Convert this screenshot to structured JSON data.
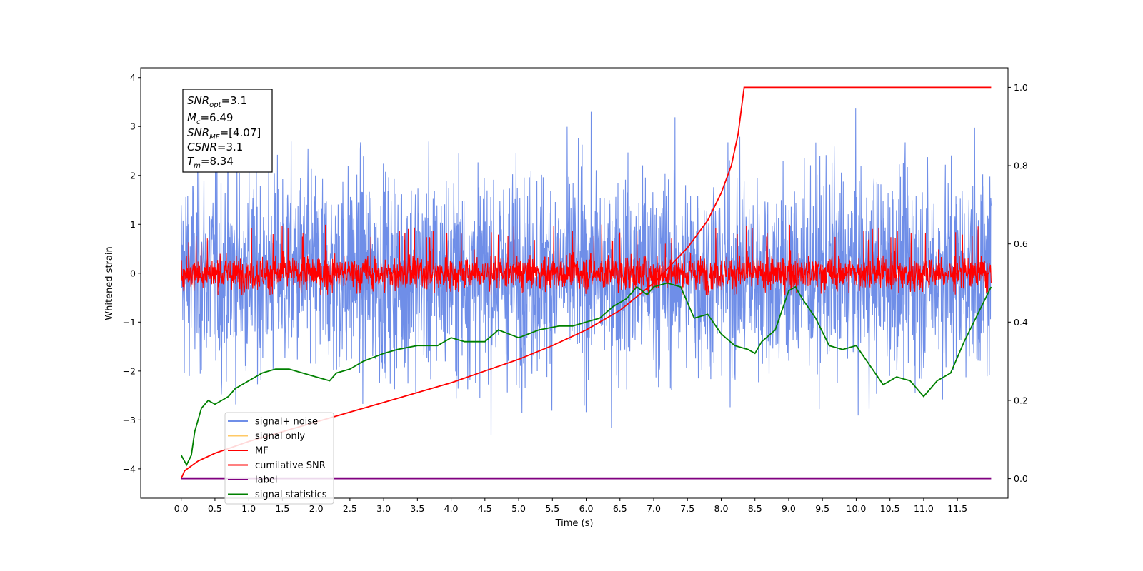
{
  "chart_data": {
    "type": "line",
    "xlabel": "Time (s)",
    "ylabel": "Whitened strain",
    "xlim": [
      -0.6,
      12.25
    ],
    "ylim": [
      -4.6,
      4.2
    ],
    "y2lim": [
      -0.05,
      1.05
    ],
    "x_ticks": [
      "0.0",
      "0.5",
      "1.0",
      "1.5",
      "2.0",
      "2.5",
      "3.0",
      "3.5",
      "4.0",
      "4.5",
      "5.0",
      "5.5",
      "6.0",
      "6.5",
      "7.0",
      "7.5",
      "8.0",
      "8.5",
      "9.0",
      "9.5",
      "10.0",
      "10.5",
      "11.0",
      "11.5"
    ],
    "y_ticks": [
      "4",
      "3",
      "2",
      "1",
      "0",
      "−1",
      "−2",
      "−3",
      "−4"
    ],
    "y2_ticks": [
      "1.0",
      "0.8",
      "0.6",
      "0.4",
      "0.2",
      "0.0"
    ],
    "annotation": {
      "snr_opt_label": "SNR",
      "snr_opt_sub": "opt",
      "snr_opt_value": "=3.1",
      "mc_label": "M",
      "mc_sub": "c",
      "mc_value": "=6.49",
      "snr_mf_label": "SNR",
      "snr_mf_sub": "MF",
      "snr_mf_value": "=[4.07]",
      "csnr_label": "CSNR",
      "csnr_value": "=3.1",
      "tm_label": "T",
      "tm_sub": "m",
      "tm_value": "=8.34"
    },
    "legend": {
      "placement": "lower-left",
      "entries": [
        {
          "name": "signal+ noise",
          "color": "#6f8ee8"
        },
        {
          "name": "signal only",
          "color": "#ffc966"
        },
        {
          "name": "MF",
          "color": "#ff0000"
        },
        {
          "name": "cumilative SNR",
          "color": "#ff0000"
        },
        {
          "name": "label",
          "color": "#800080"
        },
        {
          "name": "signal statistics",
          "color": "#008000"
        }
      ]
    },
    "series": [
      {
        "name": "signal+ noise",
        "axis": "left",
        "color": "#6f8ee8",
        "style": "noise",
        "x_range": [
          0.0,
          12.0
        ],
        "std": 1.05,
        "min": -4.15,
        "max": 3.8
      },
      {
        "name": "MF",
        "axis": "left",
        "color": "#ff0000",
        "style": "noise",
        "x_range": [
          0.0,
          12.0
        ],
        "std": 0.18,
        "min": -0.45,
        "max": 1.0
      },
      {
        "name": "cumilative SNR",
        "axis": "right",
        "color": "#ff0000",
        "x": [
          0.0,
          0.05,
          0.25,
          0.5,
          1.0,
          1.5,
          2.0,
          2.5,
          3.0,
          3.5,
          4.0,
          4.5,
          5.0,
          5.5,
          6.0,
          6.5,
          7.0,
          7.5,
          7.8,
          8.0,
          8.15,
          8.25,
          8.34,
          8.5,
          9.0,
          10.0,
          11.0,
          12.0
        ],
        "values": [
          0.0,
          0.02,
          0.045,
          0.065,
          0.095,
          0.12,
          0.145,
          0.17,
          0.195,
          0.22,
          0.245,
          0.275,
          0.305,
          0.34,
          0.38,
          0.43,
          0.5,
          0.59,
          0.66,
          0.73,
          0.8,
          0.88,
          1.0,
          1.0,
          1.0,
          1.0,
          1.0,
          1.0
        ]
      },
      {
        "name": "label",
        "axis": "right",
        "color": "#800080",
        "x": [
          0.0,
          12.0
        ],
        "values": [
          0.0,
          0.0
        ]
      },
      {
        "name": "signal statistics",
        "axis": "right",
        "color": "#008000",
        "x": [
          0.0,
          0.08,
          0.15,
          0.2,
          0.3,
          0.4,
          0.5,
          0.6,
          0.7,
          0.8,
          0.9,
          1.0,
          1.2,
          1.4,
          1.6,
          1.8,
          2.0,
          2.2,
          2.3,
          2.5,
          2.7,
          3.0,
          3.2,
          3.5,
          3.8,
          4.0,
          4.2,
          4.5,
          4.7,
          5.0,
          5.3,
          5.6,
          5.8,
          6.0,
          6.2,
          6.4,
          6.6,
          6.75,
          6.9,
          7.0,
          7.2,
          7.4,
          7.6,
          7.8,
          8.0,
          8.2,
          8.4,
          8.5,
          8.6,
          8.8,
          9.0,
          9.1,
          9.2,
          9.4,
          9.6,
          9.8,
          10.0,
          10.2,
          10.4,
          10.6,
          10.8,
          11.0,
          11.2,
          11.4,
          11.6,
          11.8,
          12.0
        ],
        "values": [
          0.06,
          0.035,
          0.06,
          0.12,
          0.18,
          0.2,
          0.19,
          0.2,
          0.21,
          0.23,
          0.24,
          0.25,
          0.27,
          0.28,
          0.28,
          0.27,
          0.26,
          0.25,
          0.27,
          0.28,
          0.3,
          0.32,
          0.33,
          0.34,
          0.34,
          0.36,
          0.35,
          0.35,
          0.38,
          0.36,
          0.38,
          0.39,
          0.39,
          0.4,
          0.41,
          0.44,
          0.46,
          0.49,
          0.47,
          0.49,
          0.5,
          0.49,
          0.41,
          0.42,
          0.37,
          0.34,
          0.33,
          0.32,
          0.35,
          0.38,
          0.48,
          0.49,
          0.46,
          0.41,
          0.34,
          0.33,
          0.34,
          0.29,
          0.24,
          0.26,
          0.25,
          0.21,
          0.25,
          0.27,
          0.35,
          0.42,
          0.49
        ]
      }
    ]
  }
}
